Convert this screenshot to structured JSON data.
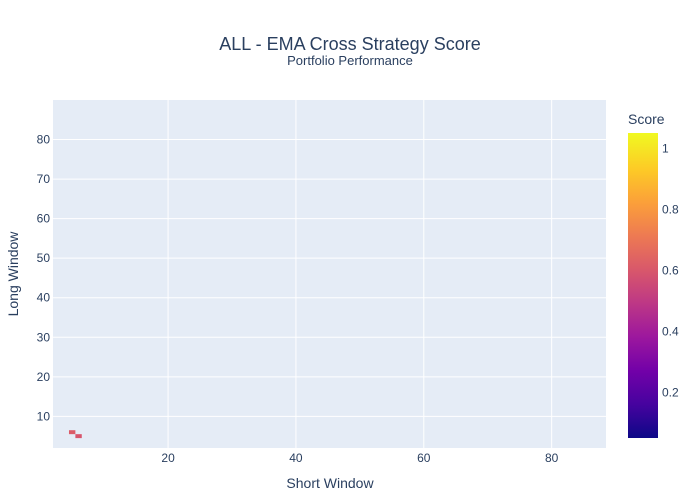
{
  "chart_data": {
    "type": "heatmap",
    "title": "ALL - EMA Cross Strategy Score",
    "subtitle": "Portfolio Performance",
    "xlabel": "Short Window",
    "ylabel": "Long Window",
    "xlim": [
      2,
      88.5
    ],
    "ylim": [
      2,
      90
    ],
    "xticks": [
      20,
      40,
      60,
      80
    ],
    "yticks": [
      10,
      20,
      30,
      40,
      50,
      60,
      70,
      80
    ],
    "grid": true,
    "colorbar": {
      "title": "Score",
      "range": [
        0.05,
        1.05
      ],
      "ticks": [
        0.2,
        0.4,
        0.6,
        0.8,
        1
      ],
      "tick_labels": [
        "0.2",
        "0.4",
        "0.6",
        "0.8",
        "1"
      ],
      "colorscale": [
        "#0d0887",
        "#46039f",
        "#7201a8",
        "#9c179e",
        "#bd3786",
        "#d8576b",
        "#ed7953",
        "#fb9f3a",
        "#fdca26",
        "#f0f921"
      ]
    },
    "cells": [
      {
        "x": 5,
        "y": 6,
        "score": 0.62
      },
      {
        "x": 6,
        "y": 5,
        "score": 0.6
      }
    ]
  }
}
